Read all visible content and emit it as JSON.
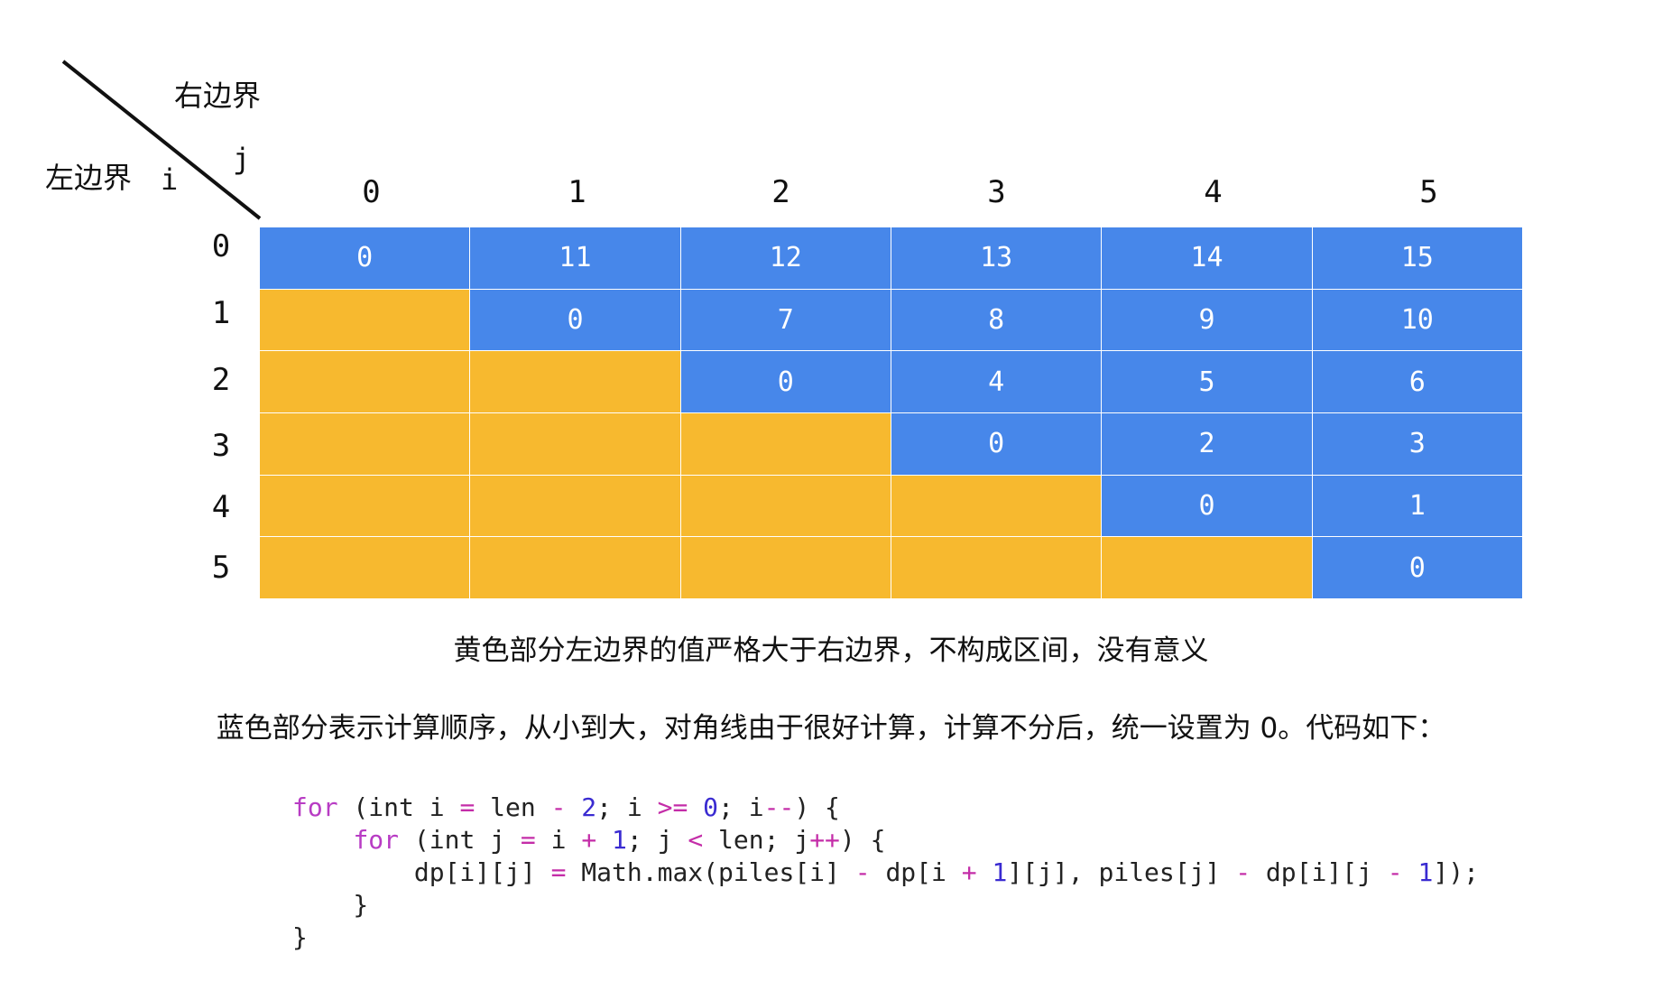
{
  "corner": {
    "right_boundary_label": "右边界",
    "left_boundary_label": "左边界",
    "j_label": "j",
    "i_label": "i"
  },
  "columns": [
    "0",
    "1",
    "2",
    "3",
    "4",
    "5"
  ],
  "rows": [
    "0",
    "1",
    "2",
    "3",
    "4",
    "5"
  ],
  "table": [
    [
      "0",
      "11",
      "12",
      "13",
      "14",
      "15"
    ],
    [
      "",
      "0",
      "7",
      "8",
      "9",
      "10"
    ],
    [
      "",
      "",
      "0",
      "4",
      "5",
      "6"
    ],
    [
      "",
      "",
      "",
      "0",
      "2",
      "3"
    ],
    [
      "",
      "",
      "",
      "",
      "0",
      "1"
    ],
    [
      "",
      "",
      "",
      "",
      "",
      "0"
    ]
  ],
  "colors": {
    "computed": "#4787ea",
    "invalid": "#f7b92f",
    "keyword": "#b83cc4",
    "operator": "#c42da8",
    "number": "#3a2bd1"
  },
  "captions": {
    "yellow_note": "黄色部分左边界的值严格大于右边界，不构成区间，没有意义",
    "blue_note": "蓝色部分表示计算顺序，从小到大，对角线由于很好计算，计算不分后，统一设置为 0。代码如下："
  },
  "code": {
    "kw_for_1": "for",
    "line1_a": " (int i ",
    "op_eq_1": "=",
    "line1_b": " len ",
    "op_minus_1": "-",
    "num_2": " 2",
    "line1_c": "; i ",
    "op_ge": ">=",
    "num_0": " 0",
    "line1_d": "; i",
    "op_dec": "--",
    "line1_e": ") {",
    "indent2": "    ",
    "kw_for_2": "for",
    "line2_a": " (int j ",
    "op_eq_2": "=",
    "line2_b": " i ",
    "op_plus_1": "+",
    "num_1a": " 1",
    "line2_c": "; j ",
    "op_lt": "<",
    "line2_d": " len; j",
    "op_inc": "++",
    "line2_e": ") {",
    "indent3": "        ",
    "line3_a": "dp[i][j] ",
    "op_eq_3": "=",
    "line3_b": " Math.max(piles[i] ",
    "op_minus_2": "-",
    "line3_c": " dp[i ",
    "op_plus_2": "+",
    "num_1b": " 1",
    "line3_d": "][j], piles[j] ",
    "op_minus_3": "-",
    "line3_e": " dp[i][j ",
    "op_minus_4": "-",
    "num_1c": " 1",
    "line3_f": "]);",
    "line4": "    }",
    "line5": "}"
  }
}
